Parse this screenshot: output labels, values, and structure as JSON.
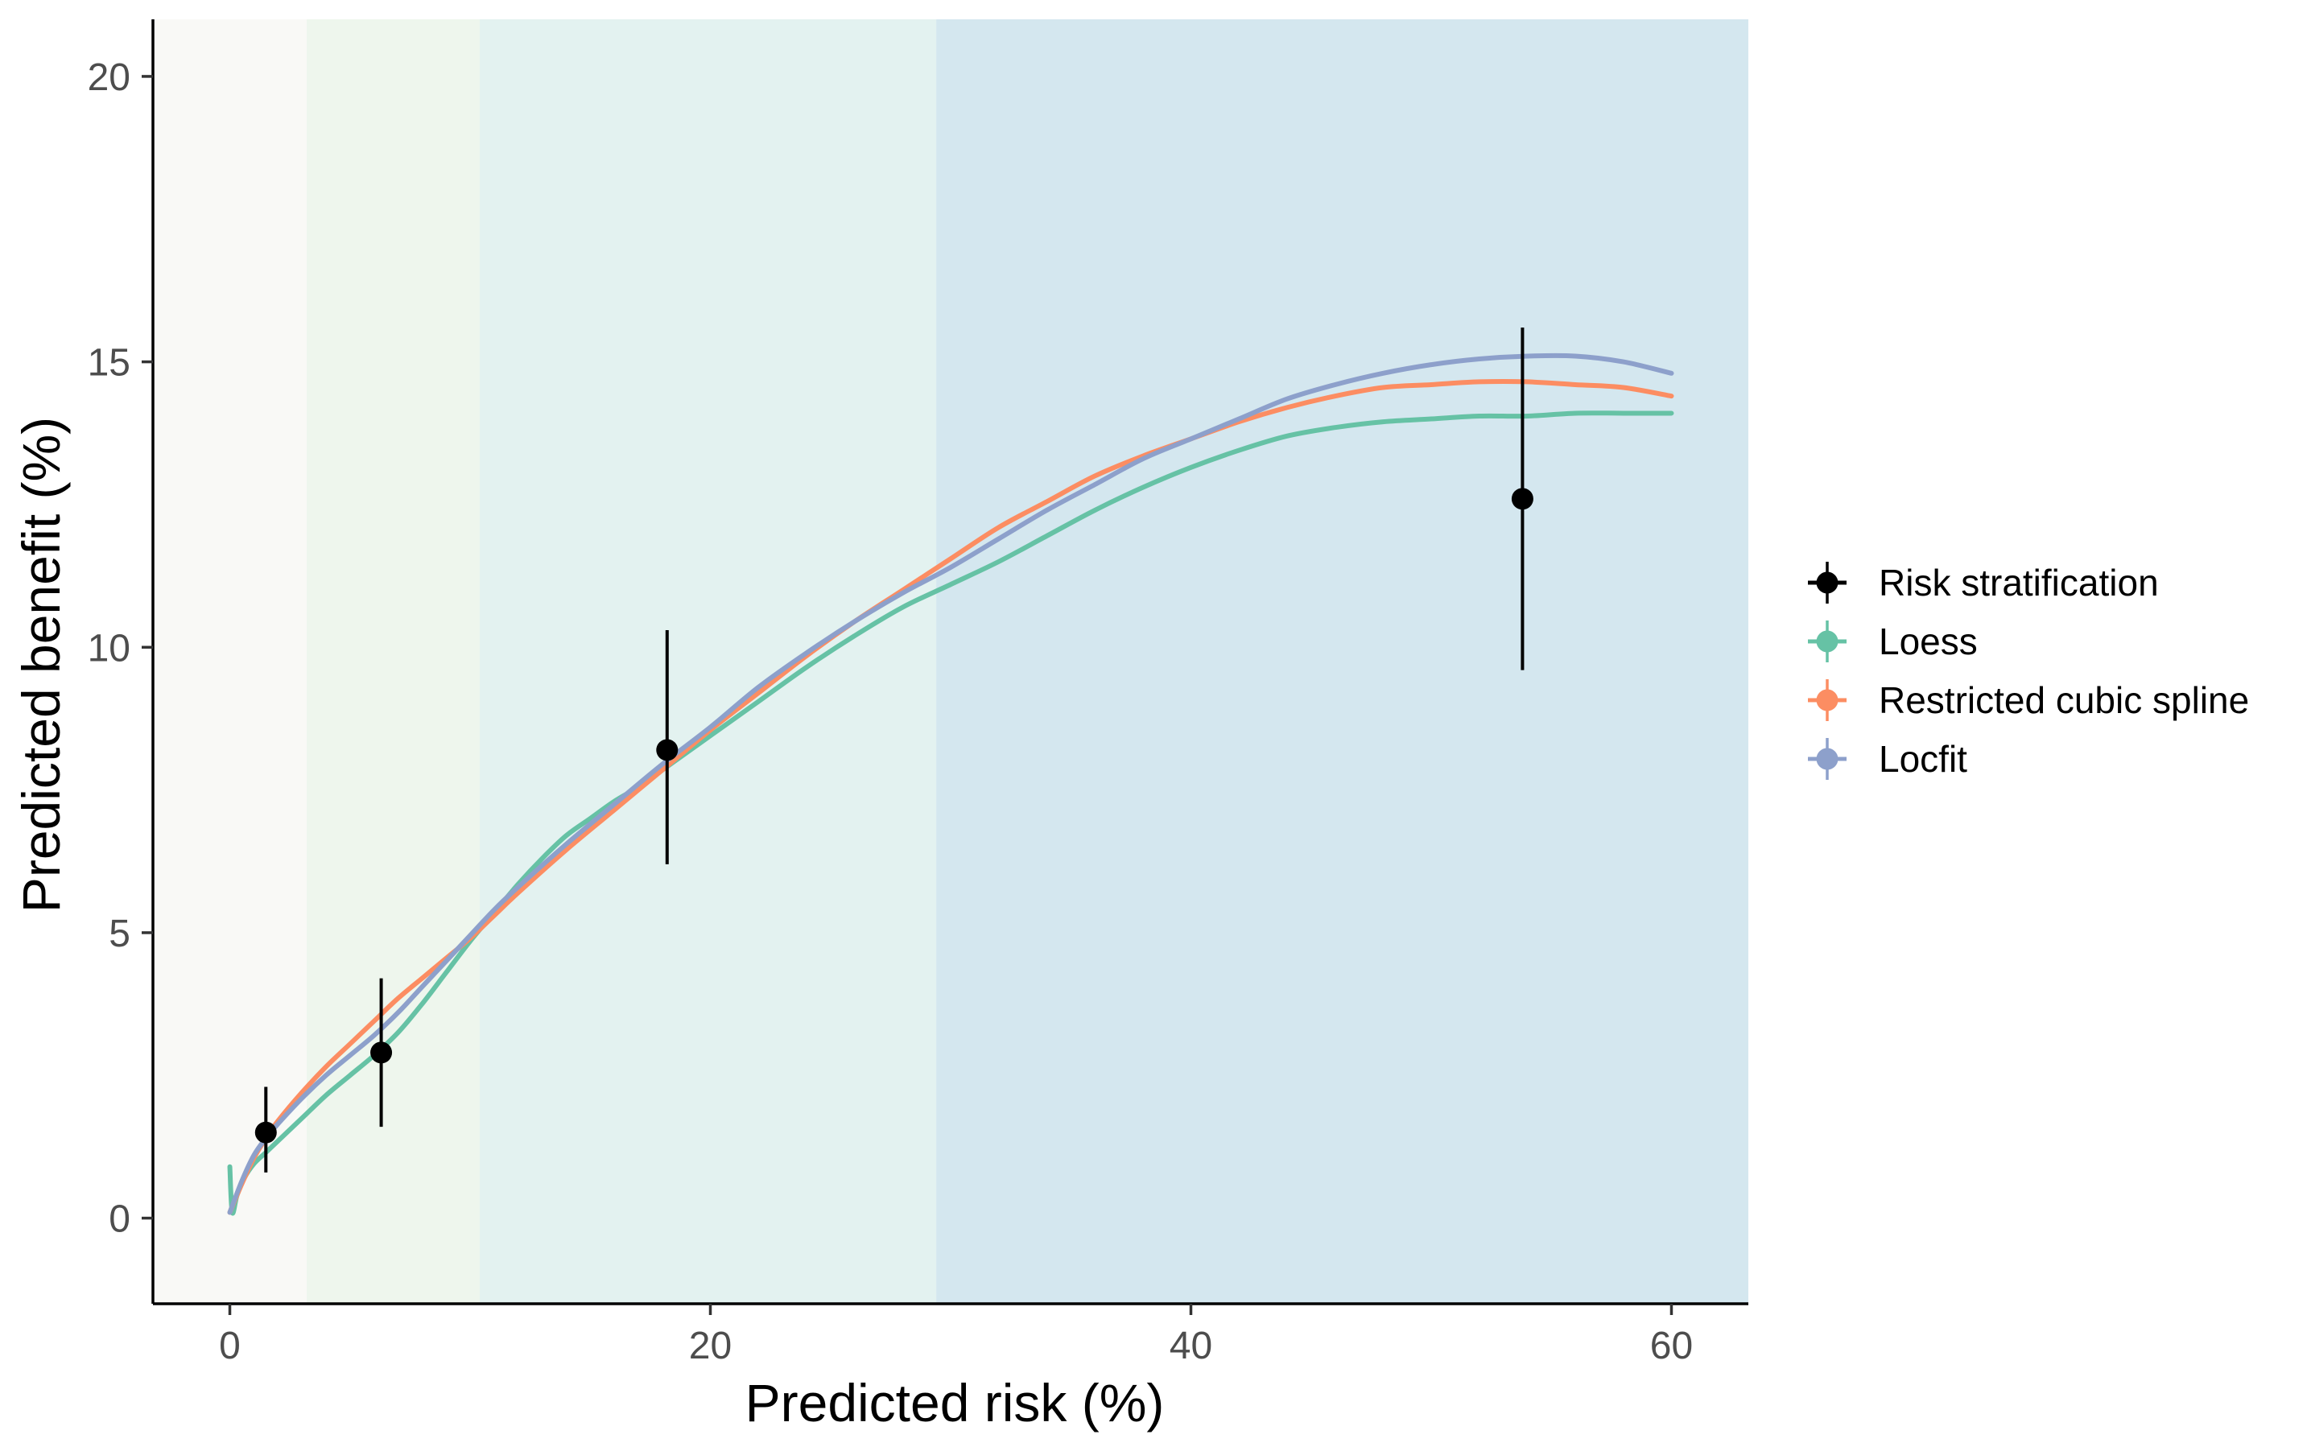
{
  "chart_data": {
    "type": "line",
    "title": "",
    "xlabel": "Predicted risk (%)",
    "ylabel": "Predicted benefit (%)",
    "xlim": [
      -3.2,
      63.2
    ],
    "ylim": [
      -1.5,
      21
    ],
    "x_ticks": [
      0,
      20,
      40,
      60
    ],
    "y_ticks": [
      0,
      5,
      10,
      15,
      20
    ],
    "grid": false,
    "legend_position": "right",
    "background_bands": [
      {
        "x": [
          -3.2,
          3.2
        ],
        "color": "#f9f9f6"
      },
      {
        "x": [
          3.2,
          10.4
        ],
        "color": "#eef6ed"
      },
      {
        "x": [
          10.4,
          29.4
        ],
        "color": "#e3f2f0"
      },
      {
        "x": [
          29.4,
          63.2
        ],
        "color": "#d4e7ef"
      }
    ],
    "series": [
      {
        "name": "Risk stratification",
        "kind": "points_with_errorbars",
        "color": "#000000",
        "points": [
          {
            "x": 1.5,
            "y": 1.5,
            "lower": 0.8,
            "upper": 2.3
          },
          {
            "x": 6.3,
            "y": 2.9,
            "lower": 1.6,
            "upper": 4.2
          },
          {
            "x": 18.2,
            "y": 8.2,
            "lower": 6.2,
            "upper": 10.3
          },
          {
            "x": 53.8,
            "y": 12.6,
            "lower": 9.6,
            "upper": 15.6
          }
        ]
      },
      {
        "name": "Loess",
        "kind": "line",
        "color": "#66c2a5",
        "x": [
          0,
          0.1,
          0.3,
          0.6,
          1,
          1.5,
          2,
          3,
          4,
          5,
          6,
          7,
          8,
          9,
          10,
          11,
          12,
          13,
          14,
          15,
          16,
          17,
          18,
          20,
          22,
          24,
          26,
          28,
          30,
          32,
          34,
          36,
          38,
          40,
          42,
          44,
          46,
          48,
          50,
          52,
          54,
          56,
          58,
          60
        ],
        "y": [
          0.9,
          0.1,
          0.4,
          0.7,
          0.95,
          1.15,
          1.35,
          1.75,
          2.15,
          2.5,
          2.85,
          3.25,
          3.75,
          4.3,
          4.85,
          5.35,
          5.85,
          6.3,
          6.7,
          7.0,
          7.3,
          7.55,
          7.85,
          8.45,
          9.05,
          9.65,
          10.2,
          10.7,
          11.1,
          11.5,
          11.95,
          12.4,
          12.8,
          13.15,
          13.45,
          13.7,
          13.85,
          13.95,
          14.0,
          14.05,
          14.05,
          14.1,
          14.1,
          14.1
        ]
      },
      {
        "name": "Restricted cubic spline",
        "kind": "line",
        "color": "#fc8d62",
        "x": [
          0,
          0.5,
          1,
          1.5,
          2,
          3,
          4,
          5,
          6,
          7,
          8,
          9,
          10,
          11,
          12,
          14,
          16,
          18,
          20,
          22,
          24,
          26,
          28,
          30,
          32,
          34,
          36,
          38,
          40,
          42,
          44,
          46,
          48,
          50,
          52,
          54,
          56,
          58,
          60
        ],
        "y": [
          0.1,
          0.6,
          1.05,
          1.4,
          1.7,
          2.2,
          2.65,
          3.05,
          3.45,
          3.85,
          4.2,
          4.55,
          4.9,
          5.3,
          5.7,
          6.45,
          7.15,
          7.85,
          8.55,
          9.2,
          9.85,
          10.45,
          11.0,
          11.55,
          12.1,
          12.55,
          13.0,
          13.35,
          13.65,
          13.95,
          14.2,
          14.4,
          14.55,
          14.6,
          14.65,
          14.65,
          14.6,
          14.55,
          14.4
        ]
      },
      {
        "name": "Locfit",
        "kind": "line",
        "color": "#8da0cb",
        "x": [
          0,
          0.5,
          1,
          1.5,
          2,
          3,
          4,
          5,
          6,
          7,
          8,
          9,
          10,
          11,
          12,
          14,
          16,
          18,
          20,
          22,
          24,
          26,
          28,
          30,
          32,
          34,
          36,
          38,
          40,
          42,
          44,
          46,
          48,
          50,
          52,
          54,
          56,
          58,
          60
        ],
        "y": [
          0.1,
          0.65,
          1.1,
          1.4,
          1.65,
          2.1,
          2.5,
          2.85,
          3.2,
          3.6,
          4.05,
          4.5,
          4.95,
          5.4,
          5.8,
          6.55,
          7.25,
          7.95,
          8.6,
          9.3,
          9.9,
          10.45,
          10.95,
          11.4,
          11.9,
          12.4,
          12.85,
          13.3,
          13.65,
          14.0,
          14.35,
          14.6,
          14.8,
          14.95,
          15.05,
          15.1,
          15.1,
          15.0,
          14.8
        ]
      }
    ]
  }
}
